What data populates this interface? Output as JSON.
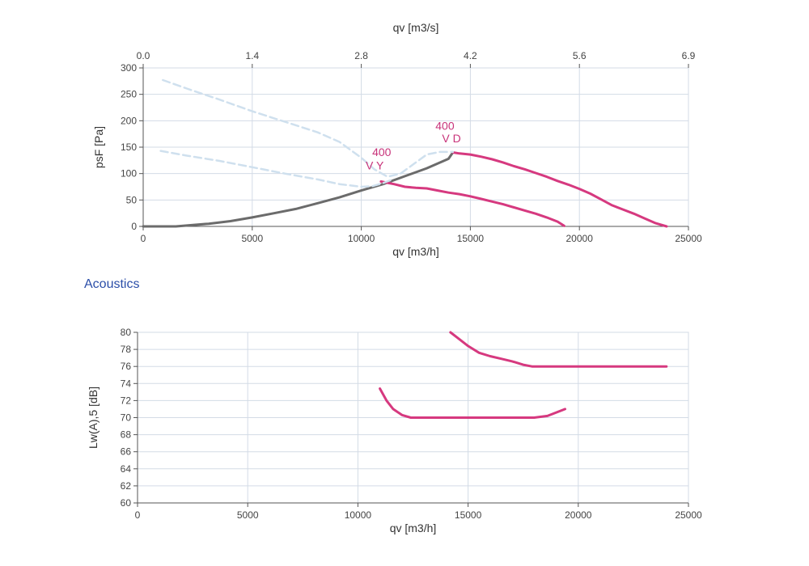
{
  "section_heading": "Acoustics",
  "colors": {
    "grid": "#d3dbe6",
    "frame": "#cfd4da",
    "system_curve": "#6b6b6b",
    "fan_curve": "#d6397f",
    "fan_curve_faint": "#cfe0ee",
    "annotation": "#c8337a",
    "heading": "#2b4ea8"
  },
  "chart_data": [
    {
      "type": "line",
      "xlabel": "qv [m3/h]",
      "ylabel": "psF [Pa]",
      "x_top_label": "qv [m3/s]",
      "xlim": [
        0,
        25000
      ],
      "ylim": [
        0,
        300
      ],
      "x_ticks": [
        0,
        5000,
        10000,
        15000,
        20000,
        25000
      ],
      "x_tick_labels": [
        "0",
        "5000",
        "10000",
        "15000",
        "20000",
        "25000"
      ],
      "y_ticks": [
        0,
        50,
        100,
        150,
        200,
        250,
        300
      ],
      "y_tick_labels": [
        "0",
        "50",
        "100",
        "150",
        "200",
        "250",
        "300"
      ],
      "x_top_ticks": [
        0,
        5000,
        10000,
        15000,
        20000,
        25000
      ],
      "x_top_tick_labels": [
        "0.0",
        "1.4",
        "2.8",
        "4.2",
        "5.6",
        "6.9"
      ],
      "grid": true,
      "series": [
        {
          "style": "system",
          "x": [
            0,
            1500,
            3000,
            4000,
            5000,
            6000,
            7000,
            8000,
            9000,
            10000,
            11000,
            12000,
            13000,
            14000,
            14200
          ],
          "y": [
            0,
            0,
            5,
            10,
            17,
            25,
            33,
            44,
            55,
            68,
            80,
            95,
            110,
            128,
            140
          ]
        },
        {
          "style": "fan",
          "x": [
            10900,
            11500,
            12000,
            12500,
            13000,
            13500,
            14000,
            14500,
            15000,
            15500,
            16000,
            16500,
            17000,
            17500,
            18000,
            18500,
            19000,
            19300
          ],
          "y": [
            85,
            80,
            75,
            73,
            72,
            68,
            64,
            61,
            57,
            52,
            47,
            42,
            36,
            30,
            24,
            17,
            9,
            1
          ]
        },
        {
          "style": "fan",
          "x": [
            14200,
            14500,
            15000,
            15500,
            16000,
            16500,
            17000,
            17500,
            18000,
            18500,
            19000,
            19500,
            20000,
            20500,
            21000,
            21500,
            22000,
            22500,
            23000,
            23500,
            24000
          ],
          "y": [
            140,
            138,
            136,
            132,
            127,
            121,
            114,
            108,
            101,
            94,
            86,
            79,
            71,
            62,
            51,
            40,
            32,
            24,
            15,
            6,
            0
          ]
        },
        {
          "style": "fan_faint",
          "x": [
            800,
            2000,
            3500,
            5000,
            6500,
            8000,
            9000,
            10000,
            10500,
            11000,
            11500
          ],
          "y": [
            143,
            134,
            124,
            112,
            100,
            89,
            80,
            75,
            76,
            82,
            90
          ]
        },
        {
          "style": "fan_faint",
          "x": [
            900,
            2000,
            3500,
            5000,
            6500,
            8000,
            9000,
            10000,
            10600,
            11200,
            11800,
            12400,
            13000,
            13600,
            14200
          ],
          "y": [
            277,
            261,
            240,
            218,
            198,
            178,
            160,
            130,
            108,
            94,
            100,
            118,
            136,
            141,
            141
          ]
        }
      ],
      "annotations": [
        {
          "text": "400",
          "x": 10500,
          "y": 133
        },
        {
          "text": "V Y",
          "x": 10200,
          "y": 108
        },
        {
          "text": "400",
          "x": 13400,
          "y": 183
        },
        {
          "text": "V D",
          "x": 13700,
          "y": 159
        }
      ]
    },
    {
      "type": "line",
      "xlabel": "qv [m3/h]",
      "ylabel": "Lw(A),5 [dB]",
      "xlim": [
        0,
        25000
      ],
      "ylim": [
        60,
        80
      ],
      "x_ticks": [
        0,
        5000,
        10000,
        15000,
        20000,
        25000
      ],
      "x_tick_labels": [
        "0",
        "5000",
        "10000",
        "15000",
        "20000",
        "25000"
      ],
      "y_ticks": [
        60,
        62,
        64,
        66,
        68,
        70,
        72,
        74,
        76,
        78,
        80
      ],
      "y_tick_labels": [
        "60",
        "62",
        "64",
        "66",
        "68",
        "70",
        "72",
        "74",
        "76",
        "78",
        "80"
      ],
      "grid": true,
      "series": [
        {
          "style": "fan",
          "x": [
            14200,
            14600,
            15000,
            15500,
            16000,
            16500,
            17000,
            17500,
            17900,
            18500,
            20000,
            22000,
            24000
          ],
          "y": [
            80,
            79.2,
            78.4,
            77.6,
            77.2,
            76.9,
            76.6,
            76.2,
            76.0,
            76.0,
            76.0,
            76.0,
            76.0
          ]
        },
        {
          "style": "fan",
          "x": [
            11000,
            11300,
            11600,
            12000,
            12400,
            13000,
            14000,
            15000,
            16000,
            17000,
            18000,
            18600,
            19400
          ],
          "y": [
            73.4,
            72.0,
            71.0,
            70.3,
            70.0,
            70.0,
            70.0,
            70.0,
            70.0,
            70.0,
            70.0,
            70.2,
            71.0
          ]
        }
      ],
      "annotations": []
    }
  ]
}
